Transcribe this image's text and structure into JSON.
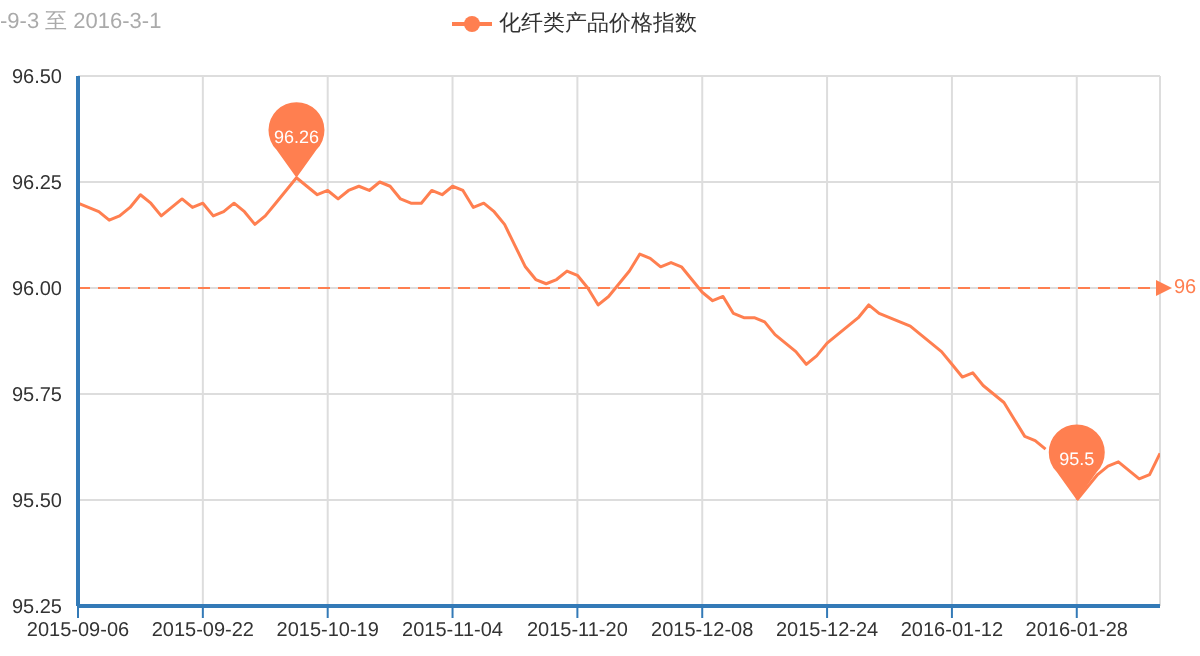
{
  "chart_data": {
    "type": "line",
    "subtitle": "-9-3 至 2016-3-1",
    "categories": [
      "2015-09-06",
      null,
      null,
      null,
      null,
      null,
      null,
      null,
      null,
      null,
      null,
      null,
      "2015-09-22",
      null,
      null,
      null,
      null,
      null,
      null,
      null,
      null,
      null,
      null,
      null,
      "2015-10-19",
      null,
      null,
      null,
      null,
      null,
      null,
      null,
      null,
      null,
      null,
      null,
      "2015-11-04",
      null,
      null,
      null,
      null,
      null,
      null,
      null,
      null,
      null,
      null,
      null,
      "2015-11-20",
      null,
      null,
      null,
      null,
      null,
      null,
      null,
      null,
      null,
      null,
      null,
      "2015-12-08",
      null,
      null,
      null,
      null,
      null,
      null,
      null,
      null,
      null,
      null,
      null,
      "2015-12-24",
      null,
      null,
      null,
      null,
      null,
      null,
      null,
      null,
      null,
      null,
      null,
      "2016-01-12",
      null,
      null,
      null,
      null,
      null,
      null,
      null,
      null,
      null,
      null,
      null,
      "2016-01-28",
      null,
      null,
      null,
      null,
      null,
      null,
      null,
      null
    ],
    "series": [
      {
        "name": "化纤类产品价格指数",
        "color": "#ff7f50",
        "values": [
          96.2,
          96.19,
          96.18,
          96.16,
          96.17,
          96.19,
          96.22,
          96.2,
          96.17,
          96.19,
          96.21,
          96.19,
          96.2,
          96.17,
          96.18,
          96.2,
          96.18,
          96.15,
          96.17,
          96.2,
          96.23,
          96.26,
          96.24,
          96.22,
          96.23,
          96.21,
          96.23,
          96.24,
          96.23,
          96.25,
          96.24,
          96.21,
          96.2,
          96.2,
          96.23,
          96.22,
          96.24,
          96.23,
          96.19,
          96.2,
          96.18,
          96.15,
          96.1,
          96.05,
          96.02,
          96.01,
          96.02,
          96.04,
          96.03,
          96.0,
          95.96,
          95.98,
          96.01,
          96.04,
          96.08,
          96.07,
          96.05,
          96.06,
          96.05,
          96.02,
          95.99,
          95.97,
          95.98,
          95.94,
          95.93,
          95.93,
          95.92,
          95.89,
          95.87,
          95.85,
          95.82,
          95.84,
          95.87,
          95.89,
          95.91,
          95.93,
          95.96,
          95.94,
          95.93,
          95.92,
          95.91,
          95.89,
          95.87,
          95.85,
          95.82,
          95.79,
          95.8,
          95.77,
          95.75,
          95.73,
          95.69,
          95.65,
          95.64,
          95.62,
          null,
          null,
          95.5,
          95.53,
          95.56,
          95.58,
          95.59,
          95.57,
          95.55,
          95.56,
          95.61
        ]
      }
    ],
    "ylim": [
      95.25,
      96.5
    ],
    "yticks": [
      95.25,
      {
        "value": 95.5,
        "label": "95.50"
      },
      95.75,
      {
        "value": 96,
        "label": "96.00"
      },
      96.25,
      {
        "value": 96.5,
        "label": "96.50"
      }
    ],
    "annotations": [
      {
        "text": "96.26",
        "y": 96.26
      },
      {
        "text": "95.5",
        "x": "2016-01-28",
        "y": 95.5
      }
    ],
    "ref_lines": [
      {
        "axis": "y",
        "value": 96,
        "label": "96",
        "color": "#ff7f50",
        "line_style": "dashed"
      }
    ],
    "grid": true,
    "legend": "top",
    "marker": "none",
    "line_style": "solid"
  }
}
